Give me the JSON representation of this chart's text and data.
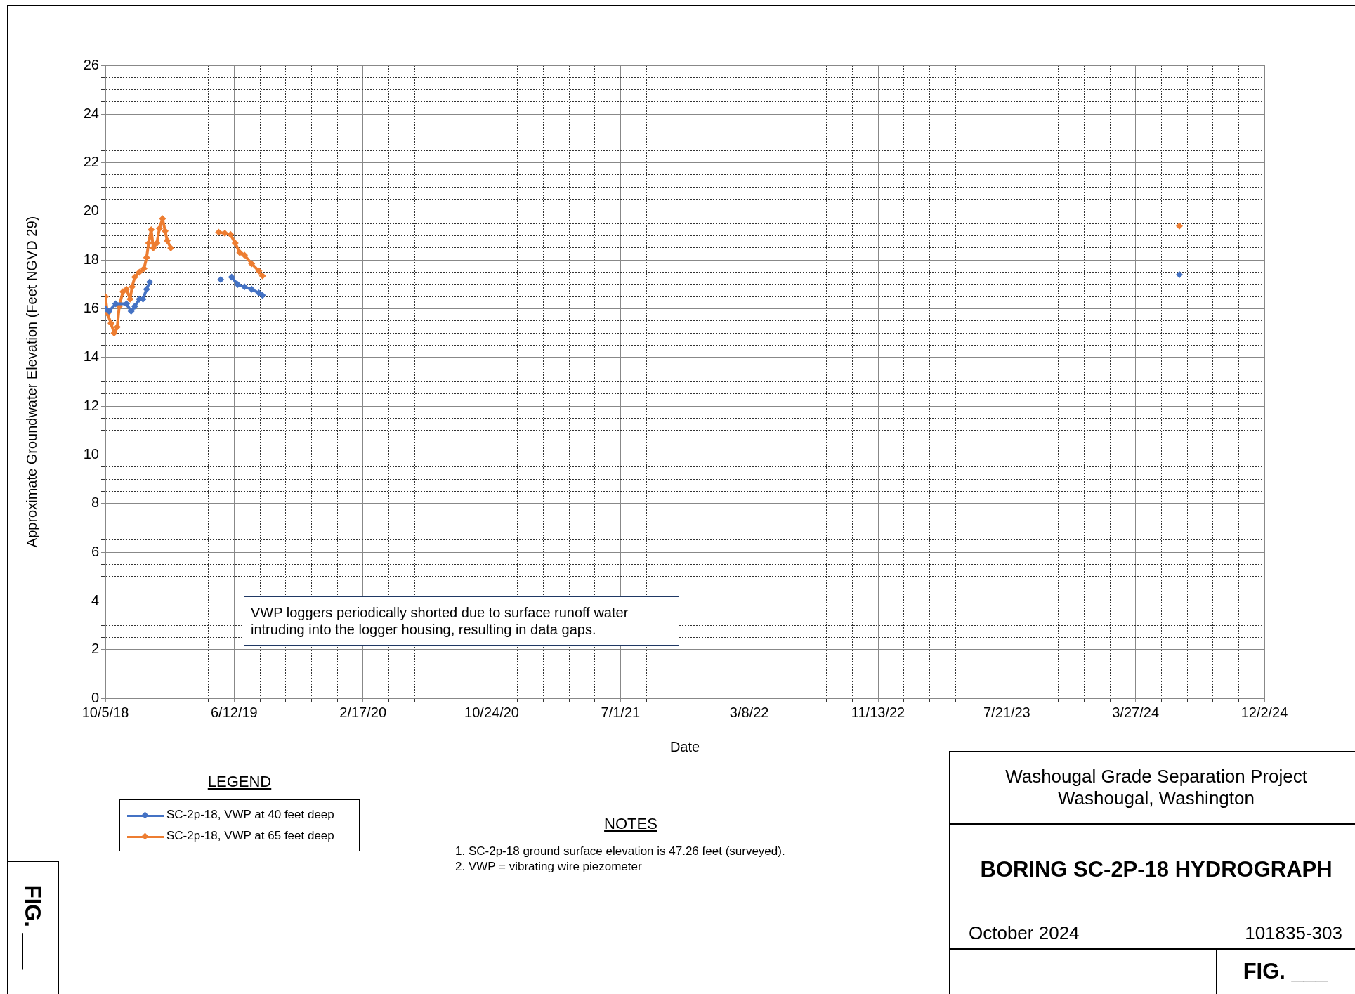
{
  "chart_data": {
    "type": "line",
    "title": "BORING SC-2P-18 HYDROGRAPH",
    "subtitle": "Washougal Grade Separation Project\nWashougal, Washington",
    "xlabel": "Date",
    "ylabel": "Approximate Groundwater Elevation (Feet NGVD 29)",
    "legend_title": "LEGEND",
    "annotations": [
      "VWP loggers periodically shorted due to surface runoff water intruding into the logger housing, resulting in data gaps.",
      "NOTES",
      "1.  SC-2p-18 ground surface elevation is 47.26 feet (surveyed).",
      "2.  VWP = vibrating wire piezometer",
      "October 2024",
      "101835-303",
      "FIG. ___",
      "FIG. ___"
    ],
    "series": [
      {
        "name": "SC-2p-18, VWP at 40 feet deep",
        "color": "#4472c4",
        "x": [
          "2018-10-05",
          "2018-10-12",
          "2018-10-25",
          "2018-11-15",
          "2018-11-24",
          "2018-12-01",
          "2018-12-10",
          "2018-12-17",
          "2018-12-24",
          "2018-12-30",
          "2019-03-01",
          "2019-05-17",
          "2019-05-25",
          "2019-06-07",
          "2019-06-19",
          "2019-07-02",
          "2019-07-16",
          "2019-07-30",
          "2019-08-06",
          "2020-01-01",
          "2024-06-20"
        ],
        "values": [
          16.0,
          15.9,
          16.2,
          16.2,
          15.9,
          16.1,
          16.4,
          16.4,
          16.8,
          17.1,
          null,
          17.2,
          null,
          17.3,
          17.0,
          16.9,
          16.8,
          16.65,
          16.55,
          null,
          17.4
        ]
      },
      {
        "name": "SC-2p-18, VWP at 65 feet deep",
        "color": "#ed7d31",
        "x": [
          "2018-10-05",
          "2018-10-09",
          "2018-10-16",
          "2018-10-22",
          "2018-10-28",
          "2018-11-01",
          "2018-11-08",
          "2018-11-15",
          "2018-11-22",
          "2018-11-26",
          "2018-12-01",
          "2018-12-10",
          "2018-12-19",
          "2018-12-24",
          "2018-12-28",
          "2019-01-02",
          "2019-01-06",
          "2019-01-13",
          "2019-01-18",
          "2019-01-24",
          "2019-01-29",
          "2019-02-02",
          "2019-02-09",
          "2019-03-20",
          "2019-05-13",
          "2019-05-25",
          "2019-06-05",
          "2019-06-14",
          "2019-06-23",
          "2019-07-02",
          "2019-07-16",
          "2019-07-30",
          "2019-08-06",
          "2020-01-01",
          "2024-06-20"
        ],
        "values": [
          16.5,
          15.8,
          15.4,
          15.0,
          15.25,
          16.1,
          16.7,
          16.8,
          16.4,
          16.9,
          17.3,
          17.5,
          17.65,
          18.1,
          18.7,
          19.25,
          18.5,
          18.7,
          19.3,
          19.7,
          19.2,
          18.8,
          18.5,
          null,
          19.15,
          19.1,
          19.05,
          18.7,
          18.3,
          18.2,
          17.85,
          17.55,
          17.35,
          null,
          19.4
        ]
      }
    ],
    "xlim": [
      "2018-10-05",
      "2024-12-02"
    ],
    "xticks": [
      {
        "value": "2018-10-05",
        "label": "10/5/18"
      },
      {
        "value": "2018-11-24",
        "label": null
      },
      {
        "value": "2019-01-13",
        "label": null
      },
      {
        "value": "2019-03-04",
        "label": null
      },
      {
        "value": "2019-04-23",
        "label": null
      },
      {
        "value": "2019-06-12",
        "label": "6/12/19"
      },
      {
        "value": "2019-08-01",
        "label": null
      },
      {
        "value": "2019-09-20",
        "label": null
      },
      {
        "value": "2019-11-09",
        "label": null
      },
      {
        "value": "2019-12-29",
        "label": null
      },
      {
        "value": "2020-02-17",
        "label": "2/17/20"
      },
      {
        "value": "2020-04-07",
        "label": null
      },
      {
        "value": "2020-05-27",
        "label": null
      },
      {
        "value": "2020-07-16",
        "label": null
      },
      {
        "value": "2020-09-04",
        "label": null
      },
      {
        "value": "2020-10-24",
        "label": "10/24/20"
      },
      {
        "value": "2020-12-13",
        "label": null
      },
      {
        "value": "2021-02-01",
        "label": null
      },
      {
        "value": "2021-03-23",
        "label": null
      },
      {
        "value": "2021-05-12",
        "label": null
      },
      {
        "value": "2021-07-01",
        "label": "7/1/21"
      },
      {
        "value": "2021-08-20",
        "label": null
      },
      {
        "value": "2021-10-09",
        "label": null
      },
      {
        "value": "2021-11-28",
        "label": null
      },
      {
        "value": "2022-01-17",
        "label": null
      },
      {
        "value": "2022-03-08",
        "label": "3/8/22"
      },
      {
        "value": "2022-04-27",
        "label": null
      },
      {
        "value": "2022-06-16",
        "label": null
      },
      {
        "value": "2022-08-05",
        "label": null
      },
      {
        "value": "2022-09-24",
        "label": null
      },
      {
        "value": "2022-11-13",
        "label": "11/13/22"
      },
      {
        "value": "2023-01-02",
        "label": null
      },
      {
        "value": "2023-02-21",
        "label": null
      },
      {
        "value": "2023-04-12",
        "label": null
      },
      {
        "value": "2023-06-01",
        "label": null
      },
      {
        "value": "2023-07-21",
        "label": "7/21/23"
      },
      {
        "value": "2023-09-09",
        "label": null
      },
      {
        "value": "2023-10-29",
        "label": null
      },
      {
        "value": "2023-12-18",
        "label": null
      },
      {
        "value": "2024-02-06",
        "label": null
      },
      {
        "value": "2024-03-27",
        "label": "3/27/24"
      },
      {
        "value": "2024-05-16",
        "label": null
      },
      {
        "value": "2024-07-05",
        "label": null
      },
      {
        "value": "2024-08-24",
        "label": null
      },
      {
        "value": "2024-10-13",
        "label": null
      },
      {
        "value": "2024-12-02",
        "label": "12/2/24"
      }
    ],
    "ylim": [
      0,
      26
    ],
    "yticks": [
      0,
      {
        "value": 0.5,
        "label": null
      },
      {
        "value": 1,
        "label": null
      },
      {
        "value": 1.5,
        "label": null
      },
      2,
      {
        "value": 2.5,
        "label": null
      },
      {
        "value": 3,
        "label": null
      },
      {
        "value": 3.5,
        "label": null
      },
      4,
      {
        "value": 4.5,
        "label": null
      },
      {
        "value": 5,
        "label": null
      },
      {
        "value": 5.5,
        "label": null
      },
      6,
      {
        "value": 6.5,
        "label": null
      },
      {
        "value": 7,
        "label": null
      },
      {
        "value": 7.5,
        "label": null
      },
      8,
      {
        "value": 8.5,
        "label": null
      },
      {
        "value": 9,
        "label": null
      },
      {
        "value": 9.5,
        "label": null
      },
      10,
      {
        "value": 10.5,
        "label": null
      },
      {
        "value": 11,
        "label": null
      },
      {
        "value": 11.5,
        "label": null
      },
      12,
      {
        "value": 12.5,
        "label": null
      },
      {
        "value": 13,
        "label": null
      },
      {
        "value": 13.5,
        "label": null
      },
      14,
      {
        "value": 14.5,
        "label": null
      },
      {
        "value": 15,
        "label": null
      },
      {
        "value": 15.5,
        "label": null
      },
      16,
      {
        "value": 16.5,
        "label": null
      },
      {
        "value": 17,
        "label": null
      },
      {
        "value": 17.5,
        "label": null
      },
      18,
      {
        "value": 18.5,
        "label": null
      },
      {
        "value": 19,
        "label": null
      },
      {
        "value": 19.5,
        "label": null
      },
      20,
      {
        "value": 20.5,
        "label": null
      },
      {
        "value": 21,
        "label": null
      },
      {
        "value": 21.5,
        "label": null
      },
      22,
      {
        "value": 22.5,
        "label": null
      },
      {
        "value": 23,
        "label": null
      },
      {
        "value": 23.5,
        "label": null
      },
      24,
      {
        "value": 24.5,
        "label": null
      },
      {
        "value": 25,
        "label": null
      },
      {
        "value": 25.5,
        "label": null
      },
      26
    ],
    "grid": true,
    "legend": "bottom left",
    "marker": "diamond",
    "line_style": "solid"
  }
}
